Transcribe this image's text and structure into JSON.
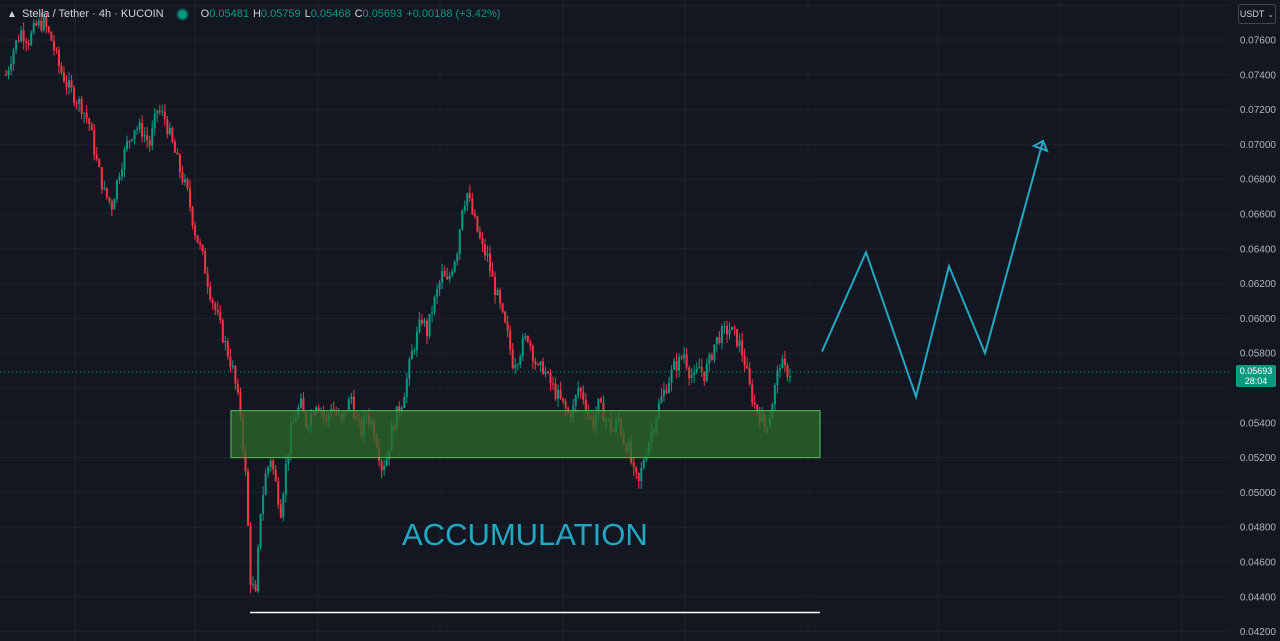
{
  "header": {
    "symbol": "Stella / Tether · 4h · KUCOIN",
    "o_label": "O",
    "o_value": "0.05481",
    "h_label": "H",
    "h_value": "0.05759",
    "l_label": "L",
    "l_value": "0.05468",
    "c_label": "C",
    "c_value": "0.05693",
    "change": "+0.00188 (+3.42%)",
    "status_color": "#089981"
  },
  "currency_selector": {
    "label": "USDT"
  },
  "last_price": {
    "value": "0.05693",
    "countdown": "28:04",
    "color": "#089981"
  },
  "annotation": {
    "text": "ACCUMULATION",
    "color": "#22a8c2"
  },
  "colors": {
    "background": "#131722",
    "up": "#089981",
    "down": "#f23645",
    "zone_fill": "#2e6b2a",
    "zone_border": "#4caf50",
    "projection": "#22a8c2"
  },
  "chart_data": {
    "type": "candlestick",
    "y_axis": {
      "min": 0.042,
      "max": 0.078,
      "ticks": [
        "0.07600",
        "0.07400",
        "0.07200",
        "0.07000",
        "0.06800",
        "0.06600",
        "0.06400",
        "0.06200",
        "0.06000",
        "0.05800",
        "0.05400",
        "0.05200",
        "0.05000",
        "0.04800",
        "0.04600",
        "0.04400",
        "0.04200"
      ]
    },
    "grid": true,
    "series": [
      {
        "type": "close_price_path",
        "points": [
          [
            0,
            0.074
          ],
          [
            3,
            0.0755
          ],
          [
            6,
            0.0765
          ],
          [
            9,
            0.076
          ],
          [
            12,
            0.0768
          ],
          [
            15,
            0.077
          ],
          [
            18,
            0.076
          ],
          [
            21,
            0.0745
          ],
          [
            24,
            0.0735
          ],
          [
            27,
            0.0728
          ],
          [
            30,
            0.0722
          ],
          [
            33,
            0.0712
          ],
          [
            36,
            0.069
          ],
          [
            39,
            0.0672
          ],
          [
            42,
            0.0665
          ],
          [
            45,
            0.0685
          ],
          [
            48,
            0.07
          ],
          [
            51,
            0.071
          ],
          [
            54,
            0.0708
          ],
          [
            57,
            0.07
          ],
          [
            60,
            0.072
          ],
          [
            63,
            0.0715
          ],
          [
            66,
            0.07
          ],
          [
            69,
            0.0685
          ],
          [
            72,
            0.0672
          ],
          [
            75,
            0.065
          ],
          [
            78,
            0.0635
          ],
          [
            81,
            0.0615
          ],
          [
            84,
            0.06
          ],
          [
            87,
            0.0585
          ],
          [
            90,
            0.057
          ],
          [
            93,
            0.0545
          ],
          [
            95,
            0.051
          ],
          [
            97,
            0.045
          ],
          [
            99,
            0.044
          ],
          [
            101,
            0.049
          ],
          [
            103,
            0.051
          ],
          [
            105,
            0.052
          ],
          [
            107,
            0.0505
          ],
          [
            109,
            0.049
          ],
          [
            111,
            0.0515
          ],
          [
            113,
            0.0535
          ],
          [
            115,
            0.0545
          ],
          [
            117,
            0.055
          ],
          [
            119,
            0.054
          ],
          [
            121,
            0.0545
          ],
          [
            123,
            0.0552
          ],
          [
            125,
            0.0548
          ],
          [
            127,
            0.054
          ],
          [
            129,
            0.055
          ],
          [
            131,
            0.0545
          ],
          [
            133,
            0.054
          ],
          [
            135,
            0.0548
          ],
          [
            137,
            0.0555
          ],
          [
            139,
            0.054
          ],
          [
            141,
            0.0535
          ],
          [
            143,
            0.0545
          ],
          [
            145,
            0.054
          ],
          [
            147,
            0.053
          ],
          [
            149,
            0.0515
          ],
          [
            151,
            0.052
          ],
          [
            153,
            0.0535
          ],
          [
            155,
            0.0545
          ],
          [
            157,
            0.0552
          ],
          [
            159,
            0.0565
          ],
          [
            161,
            0.058
          ],
          [
            163,
            0.059
          ],
          [
            165,
            0.06
          ],
          [
            167,
            0.0592
          ],
          [
            169,
            0.0605
          ],
          [
            171,
            0.0615
          ],
          [
            173,
            0.0625
          ],
          [
            175,
            0.062
          ],
          [
            177,
            0.063
          ],
          [
            179,
            0.064
          ],
          [
            181,
            0.0665
          ],
          [
            183,
            0.0672
          ],
          [
            185,
            0.066
          ],
          [
            187,
            0.065
          ],
          [
            189,
            0.064
          ],
          [
            191,
            0.0635
          ],
          [
            193,
            0.0622
          ],
          [
            195,
            0.0612
          ],
          [
            197,
            0.06
          ],
          [
            199,
            0.059
          ],
          [
            201,
            0.0575
          ],
          [
            203,
            0.0578
          ],
          [
            205,
            0.0585
          ],
          [
            207,
            0.059
          ],
          [
            209,
            0.058
          ],
          [
            211,
            0.057
          ],
          [
            213,
            0.0572
          ],
          [
            215,
            0.0565
          ],
          [
            217,
            0.056
          ],
          [
            219,
            0.0555
          ],
          [
            221,
            0.055
          ],
          [
            223,
            0.0545
          ],
          [
            225,
            0.0548
          ],
          [
            227,
            0.056
          ],
          [
            229,
            0.0555
          ],
          [
            231,
            0.0545
          ],
          [
            233,
            0.054
          ],
          [
            235,
            0.055
          ],
          [
            237,
            0.0545
          ],
          [
            239,
            0.054
          ],
          [
            241,
            0.0535
          ],
          [
            243,
            0.0542
          ],
          [
            245,
            0.053
          ],
          [
            247,
            0.0525
          ],
          [
            249,
            0.051
          ],
          [
            251,
            0.0505
          ],
          [
            253,
            0.052
          ],
          [
            255,
            0.053
          ],
          [
            257,
            0.054
          ],
          [
            259,
            0.055
          ],
          [
            261,
            0.0558
          ],
          [
            263,
            0.0565
          ],
          [
            265,
            0.0572
          ],
          [
            267,
            0.0575
          ],
          [
            269,
            0.058
          ],
          [
            271,
            0.057
          ],
          [
            273,
            0.0565
          ],
          [
            275,
            0.0572
          ],
          [
            277,
            0.0568
          ],
          [
            279,
            0.0575
          ],
          [
            281,
            0.0585
          ],
          [
            283,
            0.059
          ],
          [
            285,
            0.0592
          ],
          [
            287,
            0.0594
          ],
          [
            289,
            0.059
          ],
          [
            291,
            0.0585
          ],
          [
            293,
            0.0575
          ],
          [
            295,
            0.056
          ],
          [
            297,
            0.055
          ],
          [
            299,
            0.0545
          ],
          [
            301,
            0.0538
          ],
          [
            303,
            0.0545
          ],
          [
            305,
            0.056
          ],
          [
            307,
            0.0575
          ],
          [
            309,
            0.057
          ],
          [
            311,
            0.0569
          ]
        ]
      },
      {
        "type": "projection",
        "points": [
          [
            1,
            0.0581
          ],
          [
            2,
            0.0638
          ],
          [
            3,
            0.0555
          ],
          [
            4,
            0.063
          ],
          [
            5,
            0.058
          ],
          [
            6,
            0.0702
          ]
        ]
      }
    ],
    "zones": [
      {
        "label": "",
        "from": 0.052,
        "to": 0.0547
      }
    ],
    "levels": [
      {
        "value": 0.0431
      }
    ]
  }
}
